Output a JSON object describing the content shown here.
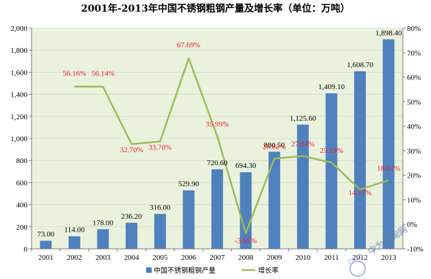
{
  "chart_data": {
    "type": "bar",
    "title": "2001年-2013年中国不锈钢粗钢产量及增长率（单位：万吨）",
    "categories": [
      "2001",
      "2002",
      "2003",
      "2004",
      "2005",
      "2006",
      "2007",
      "2008",
      "2009",
      "2010",
      "2011",
      "2012",
      "2013"
    ],
    "series": [
      {
        "name": "中国不锈钢粗钢产量",
        "type": "bar",
        "axis": "left",
        "color": "#4f81bd",
        "values": [
          73.0,
          114.0,
          178.0,
          236.2,
          316.0,
          529.9,
          720.6,
          694.3,
          880.5,
          1125.6,
          1409.1,
          1608.7,
          1898.4
        ],
        "labels": [
          "73.00",
          "114.00",
          "178.00",
          "236.20",
          "316.00",
          "529.90",
          "720.60",
          "694.30",
          "880.50",
          "1,125.60",
          "1,409.10",
          "1,608.70",
          "1,898.40"
        ]
      },
      {
        "name": "增长率",
        "type": "line",
        "axis": "right",
        "color": "#9bbb59",
        "values": [
          null,
          56.16,
          56.14,
          32.7,
          33.78,
          67.69,
          35.99,
          -3.65,
          26.82,
          27.84,
          25.19,
          14.17,
          18.01
        ],
        "labels": [
          "",
          "56.16%",
          "56.14%",
          "32.70%",
          "33.78%",
          "67.69%",
          "35.99%",
          "-3.65%",
          "26.82%",
          "27.84%",
          "25.19%",
          "14.17%",
          "18.01%"
        ]
      }
    ],
    "y_left": {
      "min": 0,
      "max": 2000,
      "ticks": [
        0,
        200,
        400,
        600,
        800,
        1000,
        1200,
        1400,
        1600,
        1800,
        2000
      ],
      "tick_labels": [
        "0",
        "200",
        "400",
        "600",
        "800",
        "1,000",
        "1,200",
        "1,400",
        "1,600",
        "1,800",
        "2,000"
      ]
    },
    "y_right": {
      "min": -10,
      "max": 80,
      "ticks": [
        -10,
        0,
        10,
        20,
        30,
        40,
        50,
        60,
        70,
        80
      ],
      "tick_labels": [
        "-10%",
        "0%",
        "10%",
        "20%",
        "30%",
        "40%",
        "50%",
        "60%",
        "70%",
        "80%"
      ]
    },
    "plot_background": "#eaf1dd",
    "legend": {
      "position": "bottom",
      "labels": [
        "中国不锈钢粗钢产量",
        "增长率"
      ]
    }
  },
  "watermark": {
    "text": "中为咨询网",
    "subtext": "ZWZX"
  }
}
